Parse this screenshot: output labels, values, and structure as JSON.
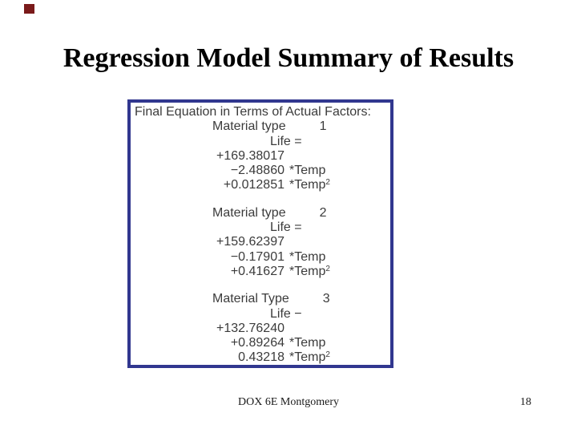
{
  "slide": {
    "title": "Regression Model Summary of Results",
    "footer": {
      "text": "DOX 6E Montgomery",
      "page_number": "18"
    }
  },
  "colors": {
    "box_border": "#31378f",
    "corner_square": "#7a1a1a",
    "box_text": "#3b3b3b",
    "background": "#ffffff"
  },
  "equation_box": {
    "header": "Final Equation in Terms of Actual Factors:",
    "blocks": [
      {
        "material_label": "Material type",
        "material_value": "1",
        "life_line": "Life =",
        "terms": [
          {
            "coef": "+169.38017",
            "term": "",
            "sup": ""
          },
          {
            "coef": "−2.48860",
            "term": "*Temp",
            "sup": ""
          },
          {
            "coef": "+0.012851",
            "term": "*Temp",
            "sup": "2"
          }
        ]
      },
      {
        "material_label": "Material type",
        "material_value": "2",
        "life_line": "Life =",
        "terms": [
          {
            "coef": "+159.62397",
            "term": "",
            "sup": ""
          },
          {
            "coef": "−0.17901",
            "term": "*Temp",
            "sup": ""
          },
          {
            "coef": "+0.41627",
            "term": "*Temp",
            "sup": "2"
          }
        ]
      },
      {
        "material_label": "Material Type",
        "material_value": "3",
        "life_line": "Life −",
        "terms": [
          {
            "coef": "+132.76240",
            "term": "",
            "sup": ""
          },
          {
            "coef": "+0.89264",
            "term": "*Temp",
            "sup": ""
          },
          {
            "coef": "0.43218",
            "term": "*Temp",
            "sup": "2"
          }
        ]
      }
    ]
  }
}
